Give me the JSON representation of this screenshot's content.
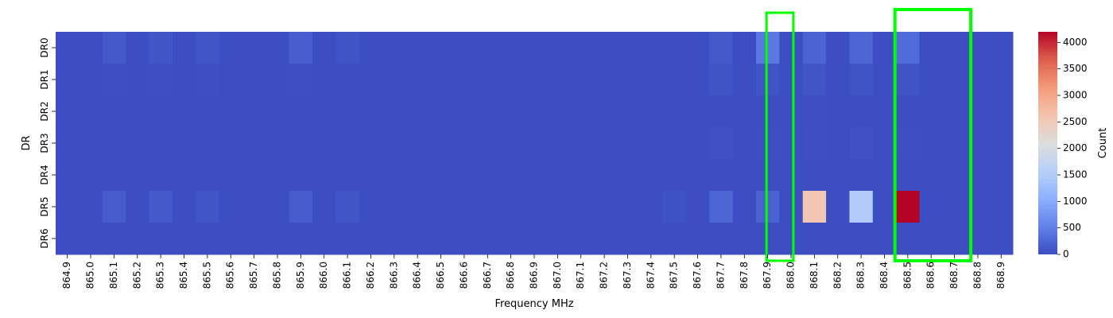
{
  "chart_data": {
    "type": "heatmap",
    "xlabel": "Frequency MHz",
    "ylabel": "DR",
    "x_tick_labels": [
      "864.9",
      "865.0",
      "865.1",
      "865.2",
      "865.3",
      "865.4",
      "865.5",
      "865.6",
      "865.7",
      "865.8",
      "865.9",
      "866.0",
      "866.1",
      "866.2",
      "866.3",
      "866.4",
      "866.5",
      "866.6",
      "866.7",
      "866.8",
      "866.9",
      "867.0",
      "867.1",
      "867.2",
      "867.3",
      "867.4",
      "867.5",
      "867.6",
      "867.7",
      "867.8",
      "867.9",
      "868.0",
      "868.1",
      "868.2",
      "868.3",
      "868.4",
      "868.5",
      "868.6",
      "868.7",
      "868.8",
      "868.9"
    ],
    "rows": [
      "DR0",
      "DR1",
      "DR2",
      "DR3",
      "DR4",
      "DR5",
      "DR6"
    ],
    "columns": 41,
    "values": [
      [
        20,
        20,
        120,
        20,
        100,
        20,
        90,
        20,
        20,
        20,
        170,
        20,
        80,
        20,
        20,
        20,
        20,
        20,
        20,
        20,
        20,
        20,
        20,
        20,
        20,
        20,
        20,
        20,
        120,
        20,
        420,
        20,
        230,
        20,
        250,
        20,
        300,
        20,
        20,
        20,
        20
      ],
      [
        20,
        20,
        30,
        20,
        30,
        20,
        30,
        20,
        20,
        20,
        30,
        20,
        20,
        20,
        20,
        20,
        20,
        20,
        20,
        20,
        20,
        20,
        20,
        20,
        20,
        20,
        20,
        20,
        80,
        20,
        80,
        20,
        90,
        20,
        80,
        20,
        80,
        20,
        20,
        20,
        20
      ],
      [
        20,
        20,
        20,
        20,
        20,
        20,
        20,
        20,
        20,
        20,
        20,
        20,
        20,
        20,
        20,
        20,
        20,
        20,
        20,
        20,
        20,
        20,
        20,
        20,
        20,
        20,
        20,
        20,
        20,
        20,
        20,
        20,
        30,
        20,
        20,
        20,
        20,
        20,
        20,
        20,
        20
      ],
      [
        20,
        20,
        20,
        20,
        20,
        20,
        20,
        20,
        20,
        20,
        20,
        20,
        20,
        20,
        20,
        20,
        20,
        20,
        20,
        20,
        20,
        20,
        20,
        20,
        20,
        20,
        20,
        20,
        50,
        20,
        30,
        20,
        40,
        20,
        50,
        20,
        30,
        20,
        20,
        20,
        20
      ],
      [
        20,
        20,
        20,
        20,
        20,
        20,
        20,
        20,
        20,
        20,
        20,
        20,
        20,
        20,
        20,
        20,
        20,
        20,
        20,
        20,
        20,
        20,
        20,
        20,
        20,
        20,
        20,
        20,
        20,
        20,
        20,
        20,
        20,
        20,
        20,
        20,
        20,
        20,
        20,
        20,
        20
      ],
      [
        20,
        20,
        150,
        20,
        130,
        20,
        100,
        20,
        20,
        20,
        150,
        20,
        100,
        20,
        20,
        20,
        20,
        20,
        20,
        20,
        20,
        20,
        20,
        20,
        20,
        20,
        60,
        20,
        250,
        20,
        200,
        20,
        2550,
        20,
        1500,
        20,
        4200,
        20,
        20,
        20,
        20
      ],
      [
        20,
        20,
        20,
        20,
        20,
        20,
        20,
        20,
        20,
        20,
        20,
        20,
        20,
        20,
        20,
        20,
        20,
        20,
        20,
        20,
        20,
        20,
        20,
        20,
        20,
        20,
        20,
        20,
        20,
        20,
        20,
        20,
        20,
        20,
        20,
        20,
        20,
        20,
        20,
        20,
        20
      ]
    ],
    "vmin": 0,
    "vmax": 4200,
    "colormap": "coolwarm",
    "colorbar_label": "Count",
    "colorbar_ticks": [
      0,
      500,
      1000,
      1500,
      2000,
      2500,
      3000,
      3500,
      4000
    ],
    "highlight_color": "#00ff00",
    "highlights": [
      {
        "col_start": 30.45,
        "col_end": 31.6,
        "row_start": -0.6,
        "row_end": 7.2
      },
      {
        "col_start": 35.95,
        "col_end": 39.2,
        "row_start": -0.7,
        "row_end": 7.2
      }
    ]
  }
}
